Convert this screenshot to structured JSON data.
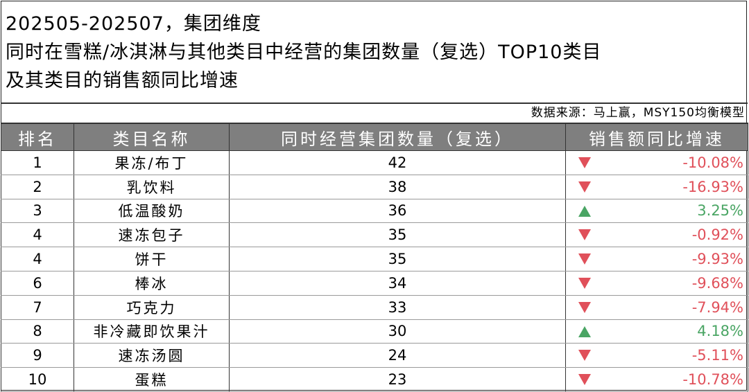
{
  "title_lines": [
    "202505-202507，集团维度",
    "同时在雪糕/冰淇淋与其他类目中经营的集团数量（复选）TOP10类目",
    "及其类目的销售额同比增速"
  ],
  "source": "数据来源：马上赢，MSY150均衡模型",
  "colors": {
    "header_bg": "#7f7f7f",
    "negative": "#e0505a",
    "positive": "#4aa564"
  },
  "chart_data": {
    "type": "table",
    "columns": [
      "排名",
      "类目名称",
      "同时经营集团数量（复选）",
      "销售额同比增速"
    ],
    "rows": [
      {
        "rank": "1",
        "name": "果冻/布丁",
        "count": "42",
        "growth": "-10.08%",
        "trend": "down"
      },
      {
        "rank": "2",
        "name": "乳饮料",
        "count": "38",
        "growth": "-16.93%",
        "trend": "down"
      },
      {
        "rank": "3",
        "name": "低温酸奶",
        "count": "36",
        "growth": "3.25%",
        "trend": "up"
      },
      {
        "rank": "4",
        "name": "速冻包子",
        "count": "35",
        "growth": "-0.92%",
        "trend": "down"
      },
      {
        "rank": "4",
        "name": "饼干",
        "count": "35",
        "growth": "-9.93%",
        "trend": "down"
      },
      {
        "rank": "6",
        "name": "棒冰",
        "count": "34",
        "growth": "-9.68%",
        "trend": "down"
      },
      {
        "rank": "7",
        "name": "巧克力",
        "count": "33",
        "growth": "-7.94%",
        "trend": "down"
      },
      {
        "rank": "8",
        "name": "非冷藏即饮果汁",
        "count": "30",
        "growth": "4.18%",
        "trend": "up"
      },
      {
        "rank": "9",
        "name": "速冻汤圆",
        "count": "24",
        "growth": "-5.11%",
        "trend": "down"
      },
      {
        "rank": "10",
        "name": "蛋糕",
        "count": "23",
        "growth": "-10.78%",
        "trend": "down"
      }
    ]
  }
}
